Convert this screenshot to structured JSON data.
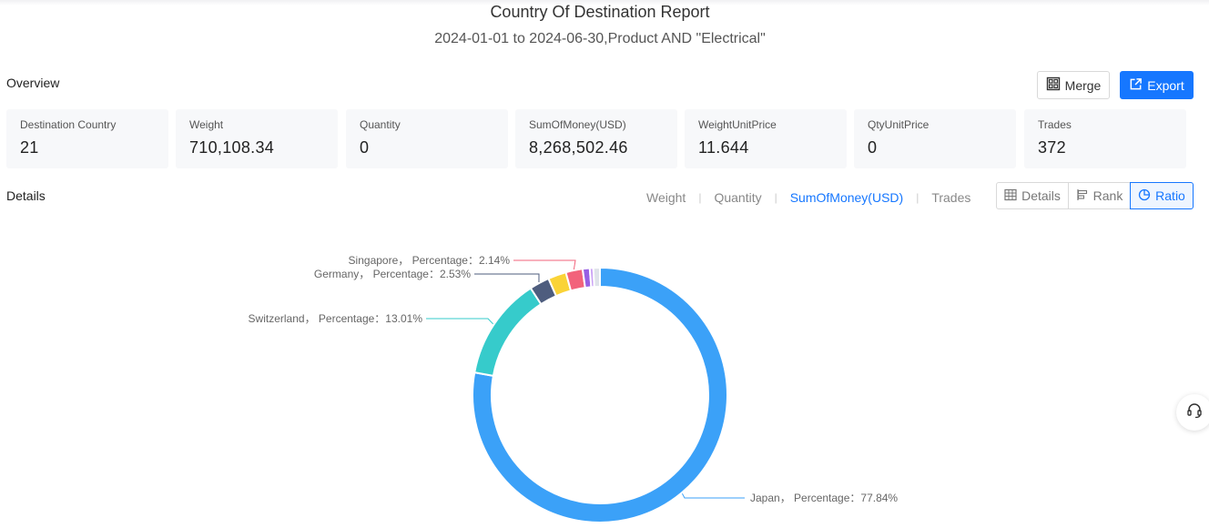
{
  "header": {
    "title": "Country Of Destination Report",
    "subtitle": "2024-01-01 to 2024-06-30,Product AND \"Electrical\""
  },
  "overview": {
    "label": "Overview",
    "merge_label": "Merge",
    "export_label": "Export",
    "stats": [
      {
        "label": "Destination Country",
        "value": "21"
      },
      {
        "label": "Weight",
        "value": "710,108.34"
      },
      {
        "label": "Quantity",
        "value": "0"
      },
      {
        "label": "SumOfMoney(USD)",
        "value": "8,268,502.46"
      },
      {
        "label": "WeightUnitPrice",
        "value": "11.644"
      },
      {
        "label": "QtyUnitPrice",
        "value": "0"
      },
      {
        "label": "Trades",
        "value": "372"
      }
    ]
  },
  "details": {
    "label": "Details",
    "metric_tabs": [
      "Weight",
      "Quantity",
      "SumOfMoney(USD)",
      "Trades"
    ],
    "active_metric": "SumOfMoney(USD)",
    "views": [
      {
        "label": "Details",
        "icon": "table-icon"
      },
      {
        "label": "Rank",
        "icon": "bar-rank-icon"
      },
      {
        "label": "Ratio",
        "icon": "pie-icon"
      }
    ],
    "active_view": "Ratio"
  },
  "chart_data": {
    "type": "pie",
    "style": "donut",
    "slices": [
      {
        "name": "Japan",
        "value": 77.84,
        "color": "#3ba1f8",
        "label": "Japan， Percentage：77.84%"
      },
      {
        "name": "Switzerland",
        "value": 13.01,
        "color": "#36cbcb",
        "label": "Switzerland， Percentage：13.01%"
      },
      {
        "name": "Germany",
        "value": 2.53,
        "color": "#4e5d7e",
        "label": "Germany， Percentage：2.53%"
      },
      {
        "name": "",
        "value": 2.3,
        "color": "#fad337",
        "label": ""
      },
      {
        "name": "Singapore",
        "value": 2.14,
        "color": "#f2637b",
        "label": "Singapore， Percentage：2.14%"
      },
      {
        "name": "",
        "value": 0.9,
        "color": "#975fe4",
        "label": ""
      },
      {
        "name": "",
        "value": 0.45,
        "color": "#c9a0f5",
        "label": ""
      },
      {
        "name": "",
        "value": 0.83,
        "color": "#dfe3ea",
        "label": ""
      }
    ]
  },
  "colors": {
    "accent": "#1677ff"
  }
}
